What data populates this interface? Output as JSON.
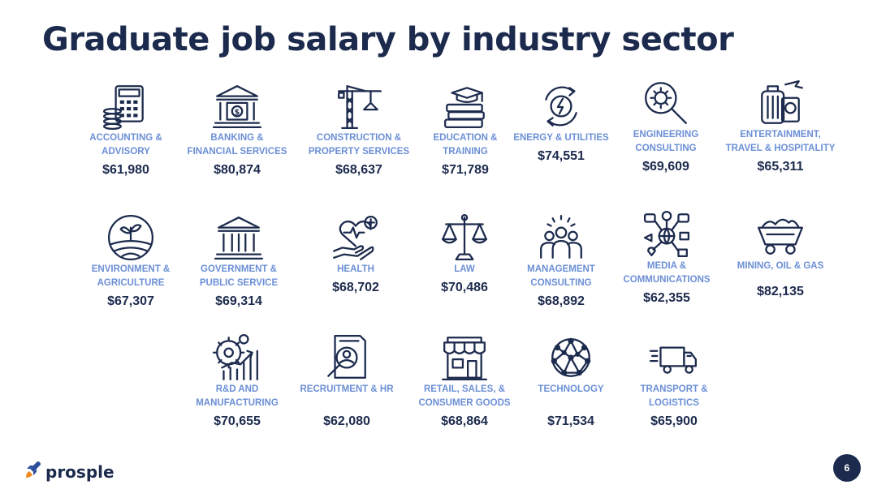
{
  "title": "Graduate job salary by industry sector",
  "brand": {
    "name": "prosple"
  },
  "page_number": "6",
  "colors": {
    "navy": "#1c2a4d",
    "label_blue": "#6b8fd6",
    "accent_orange": "#f08a24"
  },
  "sectors": [
    {
      "icon": "calculator-coins-icon",
      "label": "ACCOUNTING &\nADVISORY",
      "salary": "$61,980"
    },
    {
      "icon": "bank-building-icon",
      "label": "BANKING &\nFINANCIAL SERVICES",
      "salary": "$80,874"
    },
    {
      "icon": "construction-crane-icon",
      "label": "CONSTRUCTION &\nPROPERTY SERVICES",
      "salary": "$68,637"
    },
    {
      "icon": "books-graduation-cap-icon",
      "label": "EDUCATION &\nTRAINING",
      "salary": "$71,789"
    },
    {
      "icon": "energy-cycle-icon",
      "label": "ENERGY & UTILITIES",
      "salary": "$74,551"
    },
    {
      "icon": "magnifier-gear-icon",
      "label": "ENGINEERING\nCONSULTING",
      "salary": "$69,609"
    },
    {
      "icon": "luggage-passport-icon",
      "label": "ENTERTAINMENT,\nTRAVEL & HOSPITALITY",
      "salary": "$65,311"
    },
    {
      "icon": "plant-field-icon",
      "label": "ENVIRONMENT &\nAGRICULTURE",
      "salary": "$67,307"
    },
    {
      "icon": "government-building-icon",
      "label": "GOVERNMENT &\nPUBLIC SERVICE",
      "salary": "$69,314"
    },
    {
      "icon": "heart-hand-icon",
      "label": "HEALTH",
      "salary": "$68,702"
    },
    {
      "icon": "scales-of-justice-icon",
      "label": "LAW",
      "salary": "$70,486"
    },
    {
      "icon": "team-people-icon",
      "label": "MANAGEMENT\nCONSULTING",
      "salary": "$68,892"
    },
    {
      "icon": "media-network-icon",
      "label": "MEDIA &\nCOMMUNICATIONS",
      "salary": "$62,355"
    },
    {
      "icon": "mine-cart-icon",
      "label": "MINING, OIL & GAS",
      "salary": "$82,135"
    },
    {
      "icon": "gear-growth-chart-icon",
      "label": "R&D AND\nMANUFACTURING",
      "salary": "$70,655"
    },
    {
      "icon": "document-magnifier-icon",
      "label": "RECRUITMENT & HR",
      "salary": "$62,080"
    },
    {
      "icon": "storefront-icon",
      "label": "RETAIL, SALES, &\nCONSUMER GOODS",
      "salary": "$68,864"
    },
    {
      "icon": "network-globe-icon",
      "label": "TECHNOLOGY",
      "salary": "$71,534"
    },
    {
      "icon": "delivery-truck-icon",
      "label": "TRANSPORT &\nLOGISTICS",
      "salary": "$65,900"
    }
  ]
}
